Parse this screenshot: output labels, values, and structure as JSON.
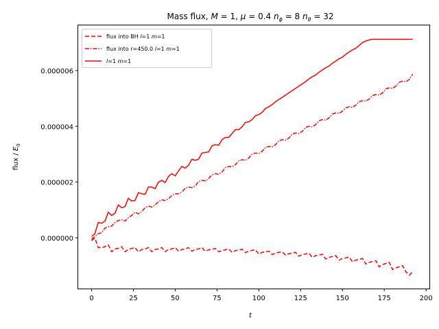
{
  "chart_data": {
    "type": "line",
    "title": {
      "prefix": "Mass flux, ",
      "M_sym": "M",
      "M_eq": " = 1, ",
      "mu_sym": "μ",
      "mu_eq": " = 0.4 ",
      "nphi_sym": "n",
      "nphi_sub": "ϕ",
      "nphi_eq": " = 8 ",
      "ntheta_sym": "n",
      "ntheta_sub": "θ",
      "ntheta_eq": " = 32"
    },
    "xlabel": "t",
    "ylabel": {
      "prefix": "flux / ",
      "sym": "E",
      "sub": "0"
    },
    "xlim": [
      -8,
      202
    ],
    "ylim": [
      -1.82e-06,
      7.62e-06
    ],
    "xticks": [
      {
        "value": 0,
        "label": "0"
      },
      {
        "value": 25,
        "label": "25"
      },
      {
        "value": 50,
        "label": "50"
      },
      {
        "value": 75,
        "label": "75"
      },
      {
        "value": 100,
        "label": "100"
      },
      {
        "value": 125,
        "label": "125"
      },
      {
        "value": 150,
        "label": "150"
      },
      {
        "value": 175,
        "label": "175"
      },
      {
        "value": 200,
        "label": "200"
      }
    ],
    "yticks": [
      {
        "value": 0,
        "label": "0.000000"
      },
      {
        "value": 2e-06,
        "label": "0.000002"
      },
      {
        "value": 4e-06,
        "label": "0.000004"
      },
      {
        "value": 6e-06,
        "label": "0.000006"
      }
    ],
    "legend_position": "top-left",
    "color": "#ff0000",
    "series": [
      {
        "name": "flux into BH l=1 m=1",
        "legend": {
          "pre": "flux into BH ",
          "l": "l",
          "mid": "=1 ",
          "m": "m",
          "post": "=1"
        },
        "style": "dashed",
        "x": [
          0,
          2,
          4,
          6,
          8,
          10,
          12,
          14,
          16,
          18,
          20,
          22,
          24,
          26,
          28,
          30,
          32,
          34,
          36,
          38,
          40,
          42,
          44,
          46,
          48,
          50,
          52,
          54,
          56,
          58,
          60,
          62,
          64,
          66,
          68,
          70,
          72,
          74,
          76,
          78,
          80,
          82,
          84,
          86,
          88,
          90,
          92,
          94,
          96,
          98,
          100,
          102,
          104,
          106,
          108,
          110,
          112,
          114,
          116,
          118,
          120,
          122,
          124,
          126,
          128,
          130,
          132,
          134,
          136,
          138,
          140,
          142,
          144,
          146,
          148,
          150,
          152,
          154,
          156,
          158,
          160,
          162,
          164,
          166,
          168,
          170,
          172,
          174,
          176,
          178,
          180,
          182,
          184,
          186,
          188,
          190,
          192
        ],
        "y": [
          -1e-07,
          -1e-08,
          -3.5e-07,
          -3.5e-07,
          -3.2e-07,
          -2.5e-07,
          -5e-07,
          -4e-07,
          -3.8e-07,
          -3.2e-07,
          -5e-07,
          -4.2e-07,
          -3.8e-07,
          -3.5e-07,
          -5e-07,
          -4.2e-07,
          -4e-07,
          -3.5e-07,
          -5e-07,
          -4.2e-07,
          -4e-07,
          -3.5e-07,
          -5e-07,
          -4.2e-07,
          -4e-07,
          -3.5e-07,
          -4.8e-07,
          -4.2e-07,
          -4e-07,
          -3.5e-07,
          -4.8e-07,
          -4.2e-07,
          -4e-07,
          -3.5e-07,
          -4.8e-07,
          -4.3e-07,
          -4.1e-07,
          -3.8e-07,
          -5e-07,
          -4.5e-07,
          -4.3e-07,
          -4e-07,
          -5.2e-07,
          -4.6e-07,
          -4.4e-07,
          -4.1e-07,
          -5.3e-07,
          -4.8e-07,
          -4.5e-07,
          -4.3e-07,
          -5.8e-07,
          -5.2e-07,
          -5e-07,
          -4.8e-07,
          -6e-07,
          -5.5e-07,
          -5.2e-07,
          -5e-07,
          -6.2e-07,
          -5.7e-07,
          -5.5e-07,
          -5.2e-07,
          -6.6e-07,
          -6e-07,
          -5.8e-07,
          -5.5e-07,
          -7e-07,
          -6.4e-07,
          -6.2e-07,
          -5.9e-07,
          -7.6e-07,
          -7e-07,
          -6.7e-07,
          -6.4e-07,
          -8e-07,
          -7.4e-07,
          -7.2e-07,
          -6.9e-07,
          -8.6e-07,
          -8e-07,
          -7.8e-07,
          -7.4e-07,
          -9.4e-07,
          -8.8e-07,
          -8.5e-07,
          -8.2e-07,
          -1.04e-06,
          -9.6e-07,
          -9.2e-07,
          -8.8e-07,
          -1.14e-06,
          -1.08e-06,
          -1.04e-06,
          -1e-06,
          -1.22e-06,
          -1.34e-06,
          -1.22e-06
        ]
      },
      {
        "name": "flux into r=450.0 l=1 m=1",
        "legend": {
          "pre": "flux into r=450.0 ",
          "l": "l",
          "mid": "=1 ",
          "m": "m",
          "post": "=1"
        },
        "style": "dashdot",
        "x": [
          0,
          2,
          4,
          6,
          8,
          10,
          12,
          14,
          16,
          18,
          20,
          22,
          24,
          26,
          28,
          30,
          32,
          34,
          36,
          38,
          40,
          42,
          44,
          46,
          48,
          50,
          52,
          54,
          56,
          58,
          60,
          62,
          64,
          66,
          68,
          70,
          72,
          74,
          76,
          78,
          80,
          82,
          84,
          86,
          88,
          90,
          92,
          94,
          96,
          98,
          100,
          102,
          104,
          106,
          108,
          110,
          112,
          114,
          116,
          118,
          120,
          122,
          124,
          126,
          128,
          130,
          132,
          134,
          136,
          138,
          140,
          142,
          144,
          146,
          148,
          150,
          152,
          154,
          156,
          158,
          160,
          162,
          164,
          166,
          168,
          170,
          172,
          174,
          176,
          178,
          180,
          182,
          184,
          186,
          188,
          190,
          192
        ],
        "y": [
          -5e-08,
          5e-08,
          1.5e-07,
          1.8e-07,
          3.5e-07,
          4e-07,
          4.2e-07,
          5.5e-07,
          6.2e-07,
          6.5e-07,
          6e-07,
          7.2e-07,
          8e-07,
          9.2e-07,
          8.6e-07,
          9.4e-07,
          1.08e-06,
          1.14e-06,
          1.1e-06,
          1.18e-06,
          1.3e-06,
          1.36e-06,
          1.34e-06,
          1.4e-06,
          1.52e-06,
          1.58e-06,
          1.58e-06,
          1.64e-06,
          1.78e-06,
          1.82e-06,
          1.8e-06,
          1.86e-06,
          2.02e-06,
          2.06e-06,
          2.04e-06,
          2.12e-06,
          2.26e-06,
          2.3e-06,
          2.28e-06,
          2.36e-06,
          2.52e-06,
          2.56e-06,
          2.55e-06,
          2.62e-06,
          2.76e-06,
          2.8e-06,
          2.78e-06,
          2.86e-06,
          3e-06,
          3.04e-06,
          3.02e-06,
          3.1e-06,
          3.24e-06,
          3.28e-06,
          3.26e-06,
          3.34e-06,
          3.48e-06,
          3.52e-06,
          3.5e-06,
          3.58e-06,
          3.72e-06,
          3.76e-06,
          3.74e-06,
          3.82e-06,
          3.96e-06,
          4e-06,
          3.98e-06,
          4.06e-06,
          4.2e-06,
          4.24e-06,
          4.22e-06,
          4.3e-06,
          4.44e-06,
          4.48e-06,
          4.46e-06,
          4.54e-06,
          4.66e-06,
          4.7e-06,
          4.68e-06,
          4.76e-06,
          4.88e-06,
          4.92e-06,
          4.9e-06,
          4.98e-06,
          5.1e-06,
          5.14e-06,
          5.12e-06,
          5.2e-06,
          5.34e-06,
          5.38e-06,
          5.36e-06,
          5.44e-06,
          5.58e-06,
          5.62e-06,
          5.6e-06,
          5.68e-06,
          5.87e-06
        ]
      },
      {
        "name": "l=1 m=1",
        "legend": {
          "pre": "",
          "l": "l",
          "mid": "=1 ",
          "m": "m",
          "post": "=1"
        },
        "style": "solid",
        "x": [
          0,
          2,
          4,
          6,
          8,
          10,
          12,
          14,
          16,
          18,
          20,
          22,
          24,
          26,
          28,
          30,
          32,
          34,
          36,
          38,
          40,
          42,
          44,
          46,
          48,
          50,
          52,
          54,
          56,
          58,
          60,
          62,
          64,
          66,
          68,
          70,
          72,
          74,
          76,
          78,
          80,
          82,
          84,
          86,
          88,
          90,
          92,
          94,
          96,
          98,
          100,
          102,
          104,
          106,
          108,
          110,
          112,
          114,
          116,
          118,
          120,
          122,
          124,
          126,
          128,
          130,
          132,
          134,
          136,
          138,
          140,
          142,
          144,
          146,
          148,
          150,
          152,
          154,
          156,
          158,
          160,
          162,
          164,
          166,
          168,
          170,
          172,
          174,
          176,
          178,
          180,
          182,
          184,
          186,
          188,
          190,
          192
        ],
        "y": [
          5e-08,
          1.5e-07,
          5.5e-07,
          5.2e-07,
          6e-07,
          9.2e-07,
          8e-07,
          8.8e-07,
          1.18e-06,
          1.08e-06,
          1.12e-06,
          1.42e-06,
          1.32e-06,
          1.34e-06,
          1.62e-06,
          1.58e-06,
          1.56e-06,
          1.82e-06,
          1.82e-06,
          1.76e-06,
          2e-06,
          2.06e-06,
          1.98e-06,
          2.2e-06,
          2.3e-06,
          2.22e-06,
          2.4e-06,
          2.56e-06,
          2.5e-06,
          2.6e-06,
          2.82e-06,
          2.78e-06,
          2.82e-06,
          3.04e-06,
          3.06e-06,
          3.08e-06,
          3.3e-06,
          3.34e-06,
          3.32e-06,
          3.52e-06,
          3.6e-06,
          3.6e-06,
          3.74e-06,
          3.88e-06,
          3.88e-06,
          3.98e-06,
          4.14e-06,
          4.16e-06,
          4.24e-06,
          4.38e-06,
          4.42e-06,
          4.5e-06,
          4.64e-06,
          4.7e-06,
          4.78e-06,
          4.88e-06,
          4.96e-06,
          5.04e-06,
          5.12e-06,
          5.2e-06,
          5.28e-06,
          5.36e-06,
          5.44e-06,
          5.52e-06,
          5.6e-06,
          5.7e-06,
          5.78e-06,
          5.84e-06,
          5.94e-06,
          6.02e-06,
          6.1e-06,
          6.16e-06,
          6.26e-06,
          6.34e-06,
          6.42e-06,
          6.48e-06,
          6.58e-06,
          6.66e-06,
          6.74e-06,
          6.8e-06,
          6.9e-06,
          7e-06,
          7.06e-06,
          7.1e-06,
          7.12e-06,
          7.12e-06,
          7.12e-06,
          7.12e-06,
          7.12e-06,
          7.12e-06,
          7.12e-06,
          7.12e-06,
          7.12e-06,
          7.12e-06,
          7.12e-06,
          7.12e-06,
          7.12e-06
        ]
      }
    ]
  }
}
